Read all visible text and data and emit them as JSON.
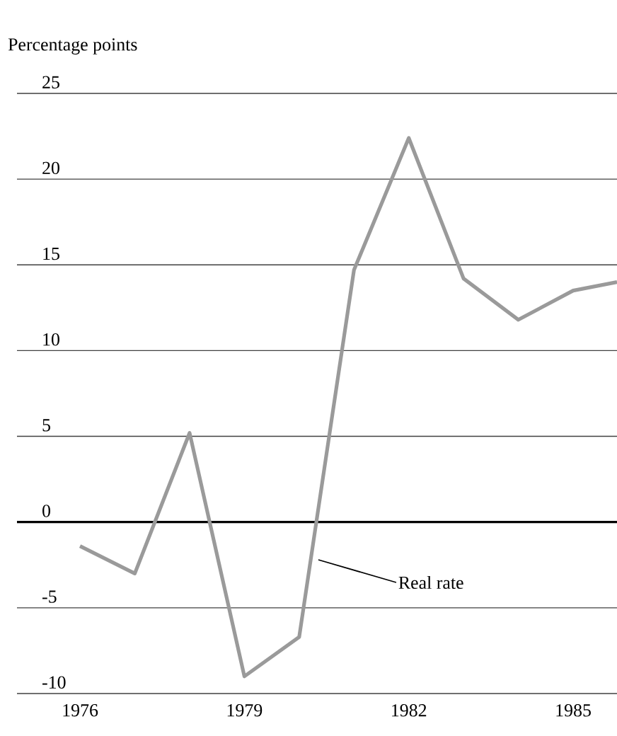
{
  "chart_data": {
    "type": "line",
    "ylabel": "Percentage points",
    "x": [
      1976,
      1977,
      1978,
      1979,
      1980,
      1981,
      1982,
      1983,
      1984,
      1985,
      1985.8
    ],
    "series": [
      {
        "color": "#9a9a9a",
        "values": [
          -1.4,
          -3.0,
          5.2,
          -9.0,
          -6.7,
          14.7,
          22.4,
          14.2,
          11.8,
          13.5,
          14.0
        ]
      }
    ],
    "annotations": [
      {
        "text": "Real rate",
        "x": 1980.35,
        "y": -2.2
      }
    ],
    "xlim": [
      1974.85,
      1985.8
    ],
    "ylim": [
      -10,
      25
    ],
    "xticks": [
      1976,
      1979,
      1982,
      1985
    ],
    "yticks": [
      -10,
      -5,
      0,
      5,
      10,
      15,
      20,
      25
    ],
    "ref_lines": [
      {
        "axis": "y",
        "value": 0
      }
    ],
    "grid": "y",
    "marker": "none",
    "line_style": "solid"
  }
}
